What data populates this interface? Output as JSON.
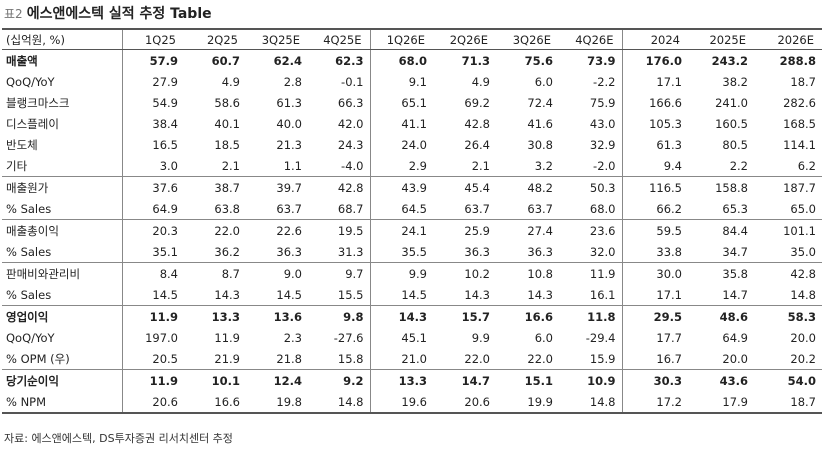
{
  "header": {
    "prefix": "표2",
    "title": "에스앤에스텍 실적 추정 Table"
  },
  "table": {
    "columns": [
      "(십억원, %)",
      "1Q25",
      "2Q25",
      "3Q25E",
      "4Q25E",
      "1Q26E",
      "2Q26E",
      "3Q26E",
      "4Q26E",
      "2024",
      "2025E",
      "2026E"
    ],
    "groups": [
      {
        "rows": [
          {
            "label": "매출액",
            "bold": true,
            "values": [
              "57.9",
              "60.7",
              "62.4",
              "62.3",
              "68.0",
              "71.3",
              "75.6",
              "73.9",
              "176.0",
              "243.2",
              "288.8"
            ]
          },
          {
            "label": "QoQ/YoY",
            "values": [
              "27.9",
              "4.9",
              "2.8",
              "-0.1",
              "9.1",
              "4.9",
              "6.0",
              "-2.2",
              "17.1",
              "38.2",
              "18.7"
            ]
          },
          {
            "label": "블랭크마스크",
            "values": [
              "54.9",
              "58.6",
              "61.3",
              "66.3",
              "65.1",
              "69.2",
              "72.4",
              "75.9",
              "166.6",
              "241.0",
              "282.6"
            ]
          },
          {
            "label": "디스플레이",
            "values": [
              "38.4",
              "40.1",
              "40.0",
              "42.0",
              "41.1",
              "42.8",
              "41.6",
              "43.0",
              "105.3",
              "160.5",
              "168.5"
            ]
          },
          {
            "label": "반도체",
            "values": [
              "16.5",
              "18.5",
              "21.3",
              "24.3",
              "24.0",
              "26.4",
              "30.8",
              "32.9",
              "61.3",
              "80.5",
              "114.1"
            ]
          },
          {
            "label": "기타",
            "values": [
              "3.0",
              "2.1",
              "1.1",
              "-4.0",
              "2.9",
              "2.1",
              "3.2",
              "-2.0",
              "9.4",
              "2.2",
              "6.2"
            ]
          }
        ]
      },
      {
        "rows": [
          {
            "label": "매출원가",
            "values": [
              "37.6",
              "38.7",
              "39.7",
              "42.8",
              "43.9",
              "45.4",
              "48.2",
              "50.3",
              "116.5",
              "158.8",
              "187.7"
            ]
          },
          {
            "label": "% Sales",
            "values": [
              "64.9",
              "63.8",
              "63.7",
              "68.7",
              "64.5",
              "63.7",
              "63.7",
              "68.0",
              "66.2",
              "65.3",
              "65.0"
            ]
          }
        ]
      },
      {
        "rows": [
          {
            "label": "매출총이익",
            "values": [
              "20.3",
              "22.0",
              "22.6",
              "19.5",
              "24.1",
              "25.9",
              "27.4",
              "23.6",
              "59.5",
              "84.4",
              "101.1"
            ]
          },
          {
            "label": "% Sales",
            "values": [
              "35.1",
              "36.2",
              "36.3",
              "31.3",
              "35.5",
              "36.3",
              "36.3",
              "32.0",
              "33.8",
              "34.7",
              "35.0"
            ]
          }
        ]
      },
      {
        "rows": [
          {
            "label": "판매비와관리비",
            "values": [
              "8.4",
              "8.7",
              "9.0",
              "9.7",
              "9.9",
              "10.2",
              "10.8",
              "11.9",
              "30.0",
              "35.8",
              "42.8"
            ]
          },
          {
            "label": "% Sales",
            "values": [
              "14.5",
              "14.3",
              "14.5",
              "15.5",
              "14.5",
              "14.3",
              "14.3",
              "16.1",
              "17.1",
              "14.7",
              "14.8"
            ]
          }
        ]
      },
      {
        "rows": [
          {
            "label": "영업이익",
            "bold": true,
            "values": [
              "11.9",
              "13.3",
              "13.6",
              "9.8",
              "14.3",
              "15.7",
              "16.6",
              "11.8",
              "29.5",
              "48.6",
              "58.3"
            ]
          },
          {
            "label": "QoQ/YoY",
            "values": [
              "197.0",
              "11.9",
              "2.3",
              "-27.6",
              "45.1",
              "9.9",
              "6.0",
              "-29.4",
              "17.7",
              "64.9",
              "20.0"
            ]
          },
          {
            "label": "% OPM (우)",
            "values": [
              "20.5",
              "21.9",
              "21.8",
              "15.8",
              "21.0",
              "22.0",
              "22.0",
              "15.9",
              "16.7",
              "20.0",
              "20.2"
            ]
          }
        ]
      },
      {
        "rows": [
          {
            "label": "당기순이익",
            "bold": true,
            "values": [
              "11.9",
              "10.1",
              "12.4",
              "9.2",
              "13.3",
              "14.7",
              "15.1",
              "10.9",
              "30.3",
              "43.6",
              "54.0"
            ]
          },
          {
            "label": "% NPM",
            "values": [
              "20.6",
              "16.6",
              "19.8",
              "14.8",
              "19.6",
              "20.6",
              "19.9",
              "14.8",
              "17.2",
              "17.9",
              "18.7"
            ]
          }
        ]
      }
    ]
  },
  "source": "자료: 에스앤에스텍, DS투자증권 리서치센터 추정"
}
